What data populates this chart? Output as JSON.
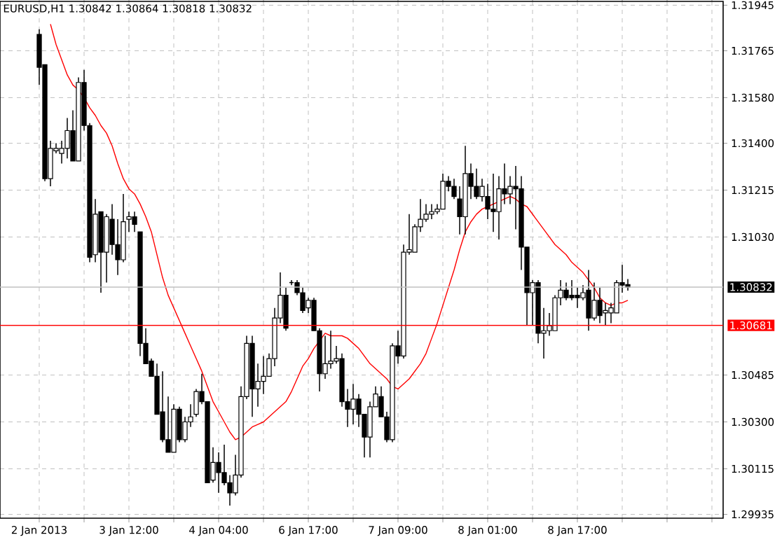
{
  "chart_data": {
    "type": "candlestick",
    "title": "EURUSD,H1  1.30842 1.30864 1.30818 1.30832",
    "color": "#000000",
    "categories": [
      "2 Jan 2013",
      null,
      null,
      null,
      null,
      null,
      null,
      null,
      null,
      null,
      null,
      null,
      null,
      null,
      null,
      null,
      "3 Jan 12:00",
      null,
      null,
      null,
      null,
      null,
      null,
      null,
      null,
      null,
      null,
      null,
      null,
      null,
      null,
      null,
      "4 Jan 04:00",
      null,
      null,
      null,
      null,
      null,
      null,
      null,
      null,
      null,
      null,
      null,
      null,
      null,
      null,
      null,
      "6 Jan 17:00",
      null,
      null,
      null,
      null,
      null,
      null,
      null,
      null,
      null,
      null,
      null,
      null,
      null,
      null,
      null,
      "7 Jan 09:00",
      null,
      null,
      null,
      null,
      null,
      null,
      null,
      null,
      null,
      null,
      null,
      null,
      null,
      null,
      null,
      "8 Jan 01:00",
      null,
      null,
      null,
      null,
      null,
      null,
      null,
      null,
      null,
      null,
      null,
      null,
      null,
      null,
      null,
      "8 Jan 17:00",
      null,
      null,
      null,
      null,
      null,
      null,
      null,
      null,
      null
    ],
    "ohlc": [
      [
        1.3183,
        1.3185,
        1.3163,
        1.317
      ],
      [
        1.3171,
        1.3171,
        1.3125,
        1.3126
      ],
      [
        1.3126,
        1.3141,
        1.3123,
        1.3138
      ],
      [
        1.3137,
        1.314,
        1.3136,
        1.3138
      ],
      [
        1.3136,
        1.3141,
        1.3132,
        1.3138
      ],
      [
        1.3138,
        1.315,
        1.3134,
        1.3145
      ],
      [
        1.3145,
        1.3153,
        1.3133,
        1.3133
      ],
      [
        1.3133,
        1.3166,
        1.3133,
        1.3164
      ],
      [
        1.3164,
        1.3169,
        1.3145,
        1.3147
      ],
      [
        1.3147,
        1.3148,
        1.3093,
        1.3095
      ],
      [
        1.3096,
        1.3118,
        1.3093,
        1.3112
      ],
      [
        1.3113,
        1.3113,
        1.3081,
        1.3097
      ],
      [
        1.3097,
        1.3112,
        1.3085,
        1.3111
      ],
      [
        1.311,
        1.3116,
        1.3096,
        1.31
      ],
      [
        1.31,
        1.311,
        1.3088,
        1.3094
      ],
      [
        1.3094,
        1.312,
        1.3093,
        1.3109
      ],
      [
        1.311,
        1.3113,
        1.3105,
        1.3111
      ],
      [
        1.3111,
        1.3113,
        1.3105,
        1.3108
      ],
      [
        1.3105,
        1.3105,
        1.3056,
        1.3061
      ],
      [
        1.3061,
        1.3067,
        1.3053,
        1.3053
      ],
      [
        1.3054,
        1.3055,
        1.3048,
        1.3048
      ],
      [
        1.3048,
        1.3053,
        1.3033,
        1.3033
      ],
      [
        1.3034,
        1.305,
        1.3022,
        1.3023
      ],
      [
        1.3023,
        1.304,
        1.3018,
        1.3018
      ],
      [
        1.3018,
        1.3037,
        1.3018,
        1.3035
      ],
      [
        1.3035,
        1.3036,
        1.3022,
        1.3023
      ],
      [
        1.3023,
        1.3032,
        1.3022,
        1.303
      ],
      [
        1.303,
        1.3037,
        1.3028,
        1.3032
      ],
      [
        1.3033,
        1.3043,
        1.3032,
        1.3042
      ],
      [
        1.3042,
        1.3049,
        1.3037,
        1.3038
      ],
      [
        1.3038,
        1.3038,
        1.3006,
        1.3006
      ],
      [
        1.3007,
        1.302,
        1.3006,
        1.3014
      ],
      [
        1.3014,
        1.3018,
        1.3002,
        1.301
      ],
      [
        1.301,
        1.3021,
        1.3005,
        1.3006
      ],
      [
        1.3006,
        1.3009,
        1.2997,
        1.3002
      ],
      [
        1.3002,
        1.3017,
        1.3001,
        1.3009
      ],
      [
        1.3009,
        1.3044,
        1.3008,
        1.304
      ],
      [
        1.304,
        1.3064,
        1.3039,
        1.3061
      ],
      [
        1.3061,
        1.3064,
        1.3032,
        1.3043
      ],
      [
        1.3043,
        1.3053,
        1.3036,
        1.3046
      ],
      [
        1.3046,
        1.3056,
        1.3041,
        1.3048
      ],
      [
        1.3048,
        1.3057,
        1.3048,
        1.3055
      ],
      [
        1.3055,
        1.3075,
        1.3052,
        1.3071
      ],
      [
        1.3071,
        1.3089,
        1.3069,
        1.308
      ],
      [
        1.308,
        1.3083,
        1.3066,
        1.3067
      ],
      [
        1.3085,
        1.3086,
        1.3084,
        1.3085
      ],
      [
        1.3085,
        1.3086,
        1.308,
        1.3081
      ],
      [
        1.3081,
        1.3083,
        1.3073,
        1.3074
      ],
      [
        1.3075,
        1.3079,
        1.3073,
        1.3078
      ],
      [
        1.3078,
        1.3079,
        1.3066,
        1.3066
      ],
      [
        1.3066,
        1.3067,
        1.3042,
        1.3049
      ],
      [
        1.3049,
        1.3064,
        1.3047,
        1.3053
      ],
      [
        1.3053,
        1.3066,
        1.3051,
        1.3054
      ],
      [
        1.3054,
        1.306,
        1.3053,
        1.3055
      ],
      [
        1.3055,
        1.3057,
        1.3036,
        1.3038
      ],
      [
        1.3038,
        1.3043,
        1.3028,
        1.3035
      ],
      [
        1.3035,
        1.3045,
        1.3029,
        1.3039
      ],
      [
        1.3039,
        1.3041,
        1.3028,
        1.3033
      ],
      [
        1.3033,
        1.3033,
        1.3016,
        1.3024
      ],
      [
        1.3024,
        1.3038,
        1.3016,
        1.3036
      ],
      [
        1.3036,
        1.3044,
        1.3036,
        1.3041
      ],
      [
        1.304,
        1.3044,
        1.3032,
        1.3032
      ],
      [
        1.3032,
        1.3034,
        1.3022,
        1.3023
      ],
      [
        1.3023,
        1.3061,
        1.3022,
        1.306
      ],
      [
        1.306,
        1.3066,
        1.3053,
        1.3056
      ],
      [
        1.3056,
        1.31,
        1.3055,
        1.3097
      ],
      [
        1.3097,
        1.3112,
        1.3096,
        1.3098
      ],
      [
        1.3097,
        1.3108,
        1.3097,
        1.3107
      ],
      [
        1.3107,
        1.3118,
        1.3105,
        1.311
      ],
      [
        1.311,
        1.3116,
        1.3109,
        1.3112
      ],
      [
        1.3112,
        1.3116,
        1.311,
        1.3113
      ],
      [
        1.3113,
        1.3116,
        1.3112,
        1.3114
      ],
      [
        1.3114,
        1.3128,
        1.3114,
        1.3125
      ],
      [
        1.3125,
        1.3127,
        1.3121,
        1.3123
      ],
      [
        1.3123,
        1.3126,
        1.3118,
        1.3119
      ],
      [
        1.3118,
        1.3123,
        1.3104,
        1.3111
      ],
      [
        1.3111,
        1.3139,
        1.3104,
        1.3128
      ],
      [
        1.3128,
        1.3132,
        1.3118,
        1.3123
      ],
      [
        1.3123,
        1.313,
        1.3118,
        1.3119
      ],
      [
        1.3119,
        1.3126,
        1.3117,
        1.3123
      ],
      [
        1.3119,
        1.3124,
        1.311,
        1.3114
      ],
      [
        1.3114,
        1.3128,
        1.3105,
        1.3113
      ],
      [
        1.3113,
        1.3127,
        1.3102,
        1.3122
      ],
      [
        1.3122,
        1.3132,
        1.3116,
        1.312
      ],
      [
        1.312,
        1.3127,
        1.3116,
        1.3123
      ],
      [
        1.3123,
        1.3131,
        1.3106,
        1.3122
      ],
      [
        1.3122,
        1.3127,
        1.309,
        1.3099
      ],
      [
        1.3099,
        1.3099,
        1.3068,
        1.3081
      ],
      [
        1.3081,
        1.3086,
        1.3068,
        1.3085
      ],
      [
        1.3085,
        1.3086,
        1.3061,
        1.3065
      ],
      [
        1.3065,
        1.3075,
        1.3055,
        1.3066
      ],
      [
        1.3066,
        1.3073,
        1.3064,
        1.3068
      ],
      [
        1.3066,
        1.308,
        1.3066,
        1.3079
      ],
      [
        1.3079,
        1.3086,
        1.3076,
        1.3082
      ],
      [
        1.3082,
        1.3085,
        1.3078,
        1.3079
      ],
      [
        1.308,
        1.3086,
        1.3078,
        1.3079
      ],
      [
        1.308,
        1.3083,
        1.3075,
        1.3079
      ],
      [
        1.3079,
        1.3084,
        1.3078,
        1.3081
      ],
      [
        1.3082,
        1.309,
        1.3066,
        1.3071
      ],
      [
        1.3071,
        1.3085,
        1.307,
        1.3078
      ],
      [
        1.3078,
        1.3083,
        1.3069,
        1.3072
      ],
      [
        1.3073,
        1.3077,
        1.3068,
        1.3074
      ],
      [
        1.3073,
        1.3077,
        1.3069,
        1.3075
      ],
      [
        1.3073,
        1.3086,
        1.3073,
        1.3085
      ],
      [
        1.3085,
        1.3092,
        1.3081,
        1.3084
      ],
      [
        1.30842,
        1.30864,
        1.30818,
        1.30832
      ]
    ],
    "series": [
      {
        "type": "line",
        "color": "#ff0000",
        "values": [
          null,
          null,
          1.3187,
          1.3179,
          1.3173,
          1.3167,
          1.3163,
          1.3161,
          1.3158,
          1.3154,
          1.3151,
          1.3147,
          1.3144,
          1.3139,
          1.3132,
          1.3126,
          1.3122,
          1.312,
          1.3116,
          1.3111,
          1.3105,
          1.3096,
          1.3087,
          1.308,
          1.3075,
          1.307,
          1.3065,
          1.306,
          1.3055,
          1.305,
          1.3044,
          1.3038,
          1.3034,
          1.303,
          1.3026,
          1.3023,
          1.3024,
          1.3026,
          1.3028,
          1.3029,
          1.303,
          1.3032,
          1.3034,
          1.3036,
          1.3038,
          1.3042,
          1.3047,
          1.3052,
          1.3055,
          1.3059,
          1.3062,
          1.3065,
          1.3064,
          1.3064,
          1.3064,
          1.3063,
          1.3061,
          1.3059,
          1.3056,
          1.3053,
          1.3051,
          1.3049,
          1.3047,
          1.3044,
          1.3043,
          1.3045,
          1.3047,
          1.305,
          1.3053,
          1.3057,
          1.3063,
          1.3069,
          1.3076,
          1.3083,
          1.309,
          1.3098,
          1.3105,
          1.3109,
          1.3112,
          1.3114,
          1.3115,
          1.3116,
          1.3117,
          1.3118,
          1.3119,
          1.3118,
          1.3116,
          1.3115,
          1.3112,
          1.3109,
          1.3106,
          1.3103,
          1.31,
          1.3098,
          1.3096,
          1.3093,
          1.3091,
          1.3089,
          1.3086,
          1.3083,
          1.3079,
          1.3077,
          1.3076,
          1.3077,
          1.3077,
          1.3078
        ]
      }
    ],
    "ylim": [
      1.2992,
      1.3196
    ],
    "yticks": [
      {
        "value": 1.31945,
        "label": "1.31945"
      },
      {
        "value": 1.31765,
        "label": "1.31765"
      },
      {
        "value": 1.3158,
        "label": "1.31580"
      },
      {
        "value": 1.314,
        "label": "1.31400"
      },
      {
        "value": 1.31215,
        "label": "1.31215"
      },
      {
        "value": 1.3103,
        "label": "1.31030"
      },
      {
        "value": 1.30485,
        "label": "1.30485"
      },
      {
        "value": 1.303,
        "label": "1.30300"
      },
      {
        "value": 1.30115,
        "label": "1.30115"
      },
      {
        "value": 1.29935,
        "label": "1.29935"
      }
    ],
    "ref_lines": [
      {
        "axis": "y",
        "value": 1.30832,
        "label": "1.30832",
        "color": "#c0c0c0"
      },
      {
        "axis": "y",
        "value": 1.30681,
        "label": "1.30681",
        "color": "#ff0000"
      }
    ],
    "grid": true
  }
}
